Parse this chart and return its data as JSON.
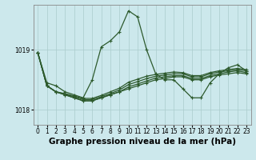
{
  "title": "Graphe pression niveau de la mer (hPa)",
  "background_color": "#cce8ec",
  "grid_color": "#aacccc",
  "line_color": "#2d5a2d",
  "xlim": [
    -0.5,
    23.5
  ],
  "ylim": [
    1017.75,
    1019.75
  ],
  "yticks": [
    1018,
    1019
  ],
  "xticks": [
    0,
    1,
    2,
    3,
    4,
    5,
    6,
    7,
    8,
    9,
    10,
    11,
    12,
    13,
    14,
    15,
    16,
    17,
    18,
    19,
    20,
    21,
    22,
    23
  ],
  "series_jagged": [
    1018.95,
    1018.45,
    1018.4,
    1018.3,
    1018.25,
    1018.2,
    1018.5,
    1019.05,
    1019.15,
    1019.3,
    1019.65,
    1019.55,
    1019.0,
    1018.6,
    1018.5,
    1018.5,
    1018.35,
    1018.2,
    1018.2,
    1018.45,
    1018.6,
    1018.7,
    1018.75,
    1018.65
  ],
  "series_smooth1": [
    1018.95,
    1018.4,
    1018.3,
    1018.25,
    1018.2,
    1018.15,
    1018.15,
    1018.2,
    1018.25,
    1018.3,
    1018.35,
    1018.4,
    1018.45,
    1018.5,
    1018.52,
    1018.55,
    1018.55,
    1018.5,
    1018.5,
    1018.55,
    1018.58,
    1018.6,
    1018.62,
    1018.6
  ],
  "series_smooth2": [
    1018.95,
    1018.4,
    1018.3,
    1018.25,
    1018.2,
    1018.15,
    1018.15,
    1018.2,
    1018.25,
    1018.3,
    1018.38,
    1018.43,
    1018.48,
    1018.53,
    1018.55,
    1018.57,
    1018.57,
    1018.52,
    1018.52,
    1018.57,
    1018.6,
    1018.63,
    1018.65,
    1018.62
  ],
  "series_smooth3": [
    1018.95,
    1018.4,
    1018.3,
    1018.26,
    1018.22,
    1018.17,
    1018.17,
    1018.22,
    1018.27,
    1018.33,
    1018.42,
    1018.47,
    1018.52,
    1018.56,
    1018.58,
    1018.6,
    1018.6,
    1018.55,
    1018.55,
    1018.6,
    1018.63,
    1018.65,
    1018.67,
    1018.65
  ],
  "series_smooth4": [
    1018.95,
    1018.4,
    1018.3,
    1018.27,
    1018.23,
    1018.19,
    1018.19,
    1018.24,
    1018.3,
    1018.36,
    1018.46,
    1018.51,
    1018.56,
    1018.59,
    1018.61,
    1018.63,
    1018.62,
    1018.57,
    1018.57,
    1018.62,
    1018.65,
    1018.67,
    1018.69,
    1018.67
  ],
  "marker": "+",
  "markersize": 3.5,
  "linewidth": 0.9,
  "title_fontsize": 7.5,
  "tick_fontsize": 5.5
}
